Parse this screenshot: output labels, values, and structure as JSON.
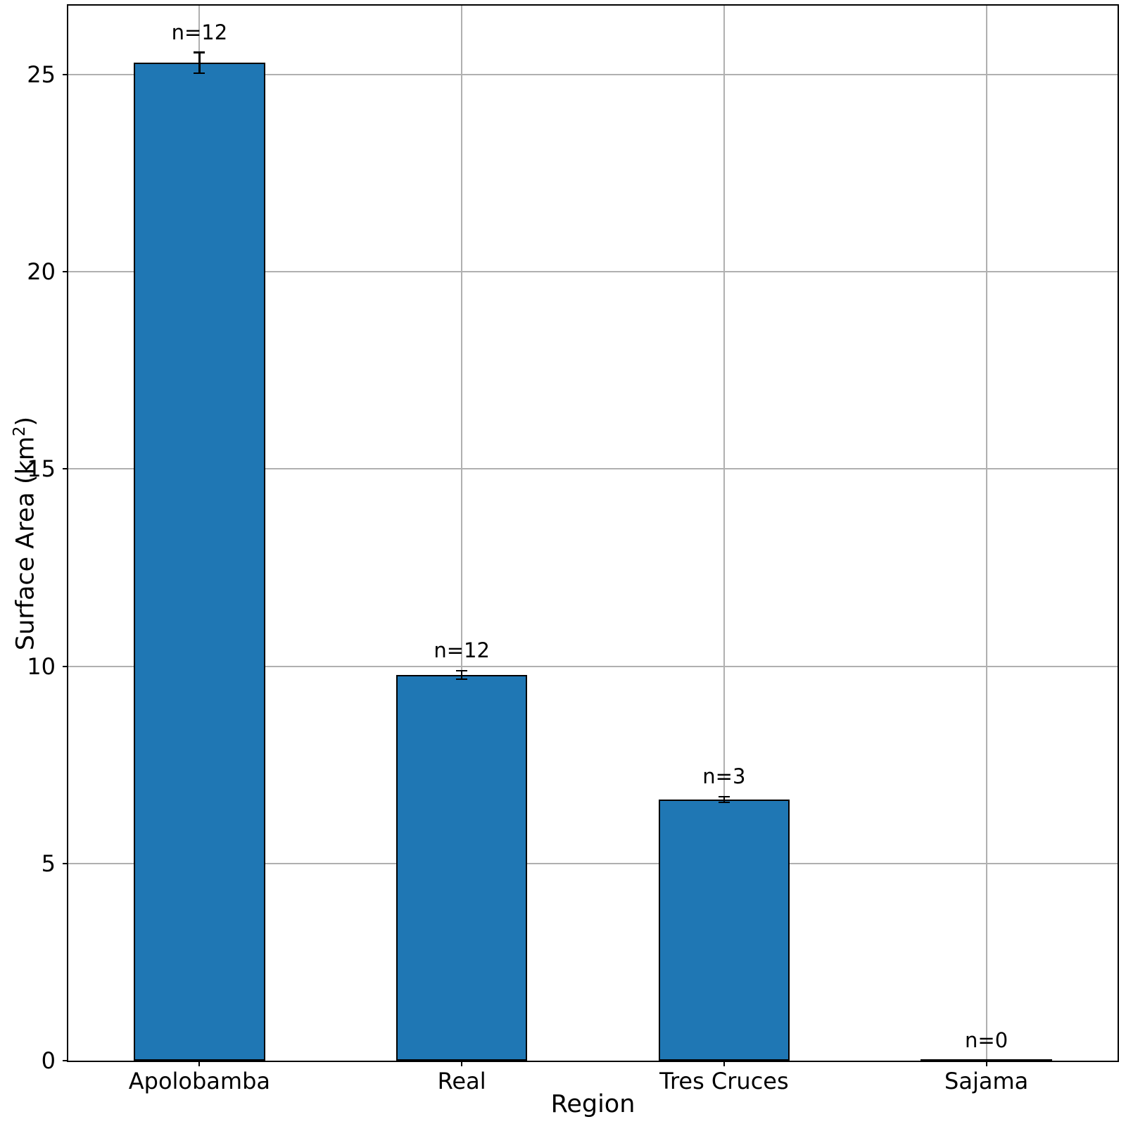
{
  "chart_data": {
    "type": "bar",
    "title": "",
    "xlabel": "Region",
    "ylabel": "Surface Area (km2)",
    "ylabel_parts": {
      "prefix": "Surface Area (km",
      "sup": "2",
      "suffix": ")"
    },
    "categories": [
      "Apolobamba",
      "Real",
      "Tres Cruces",
      "Sajama"
    ],
    "values": [
      25.3,
      9.78,
      6.62,
      0
    ],
    "errors": [
      0.26,
      0.11,
      0.07,
      0
    ],
    "bar_labels": [
      "n=12",
      "n=12",
      "n=3",
      "n=0"
    ],
    "yticks": [
      0,
      5,
      10,
      15,
      20,
      25
    ],
    "ylim": [
      0,
      26.75
    ],
    "grid": true,
    "legend": "none",
    "bar_color": "#1f77b4",
    "bar_edge_color": "#000000",
    "grid_color": "#b0b0b0",
    "axis_color": "#000000"
  }
}
